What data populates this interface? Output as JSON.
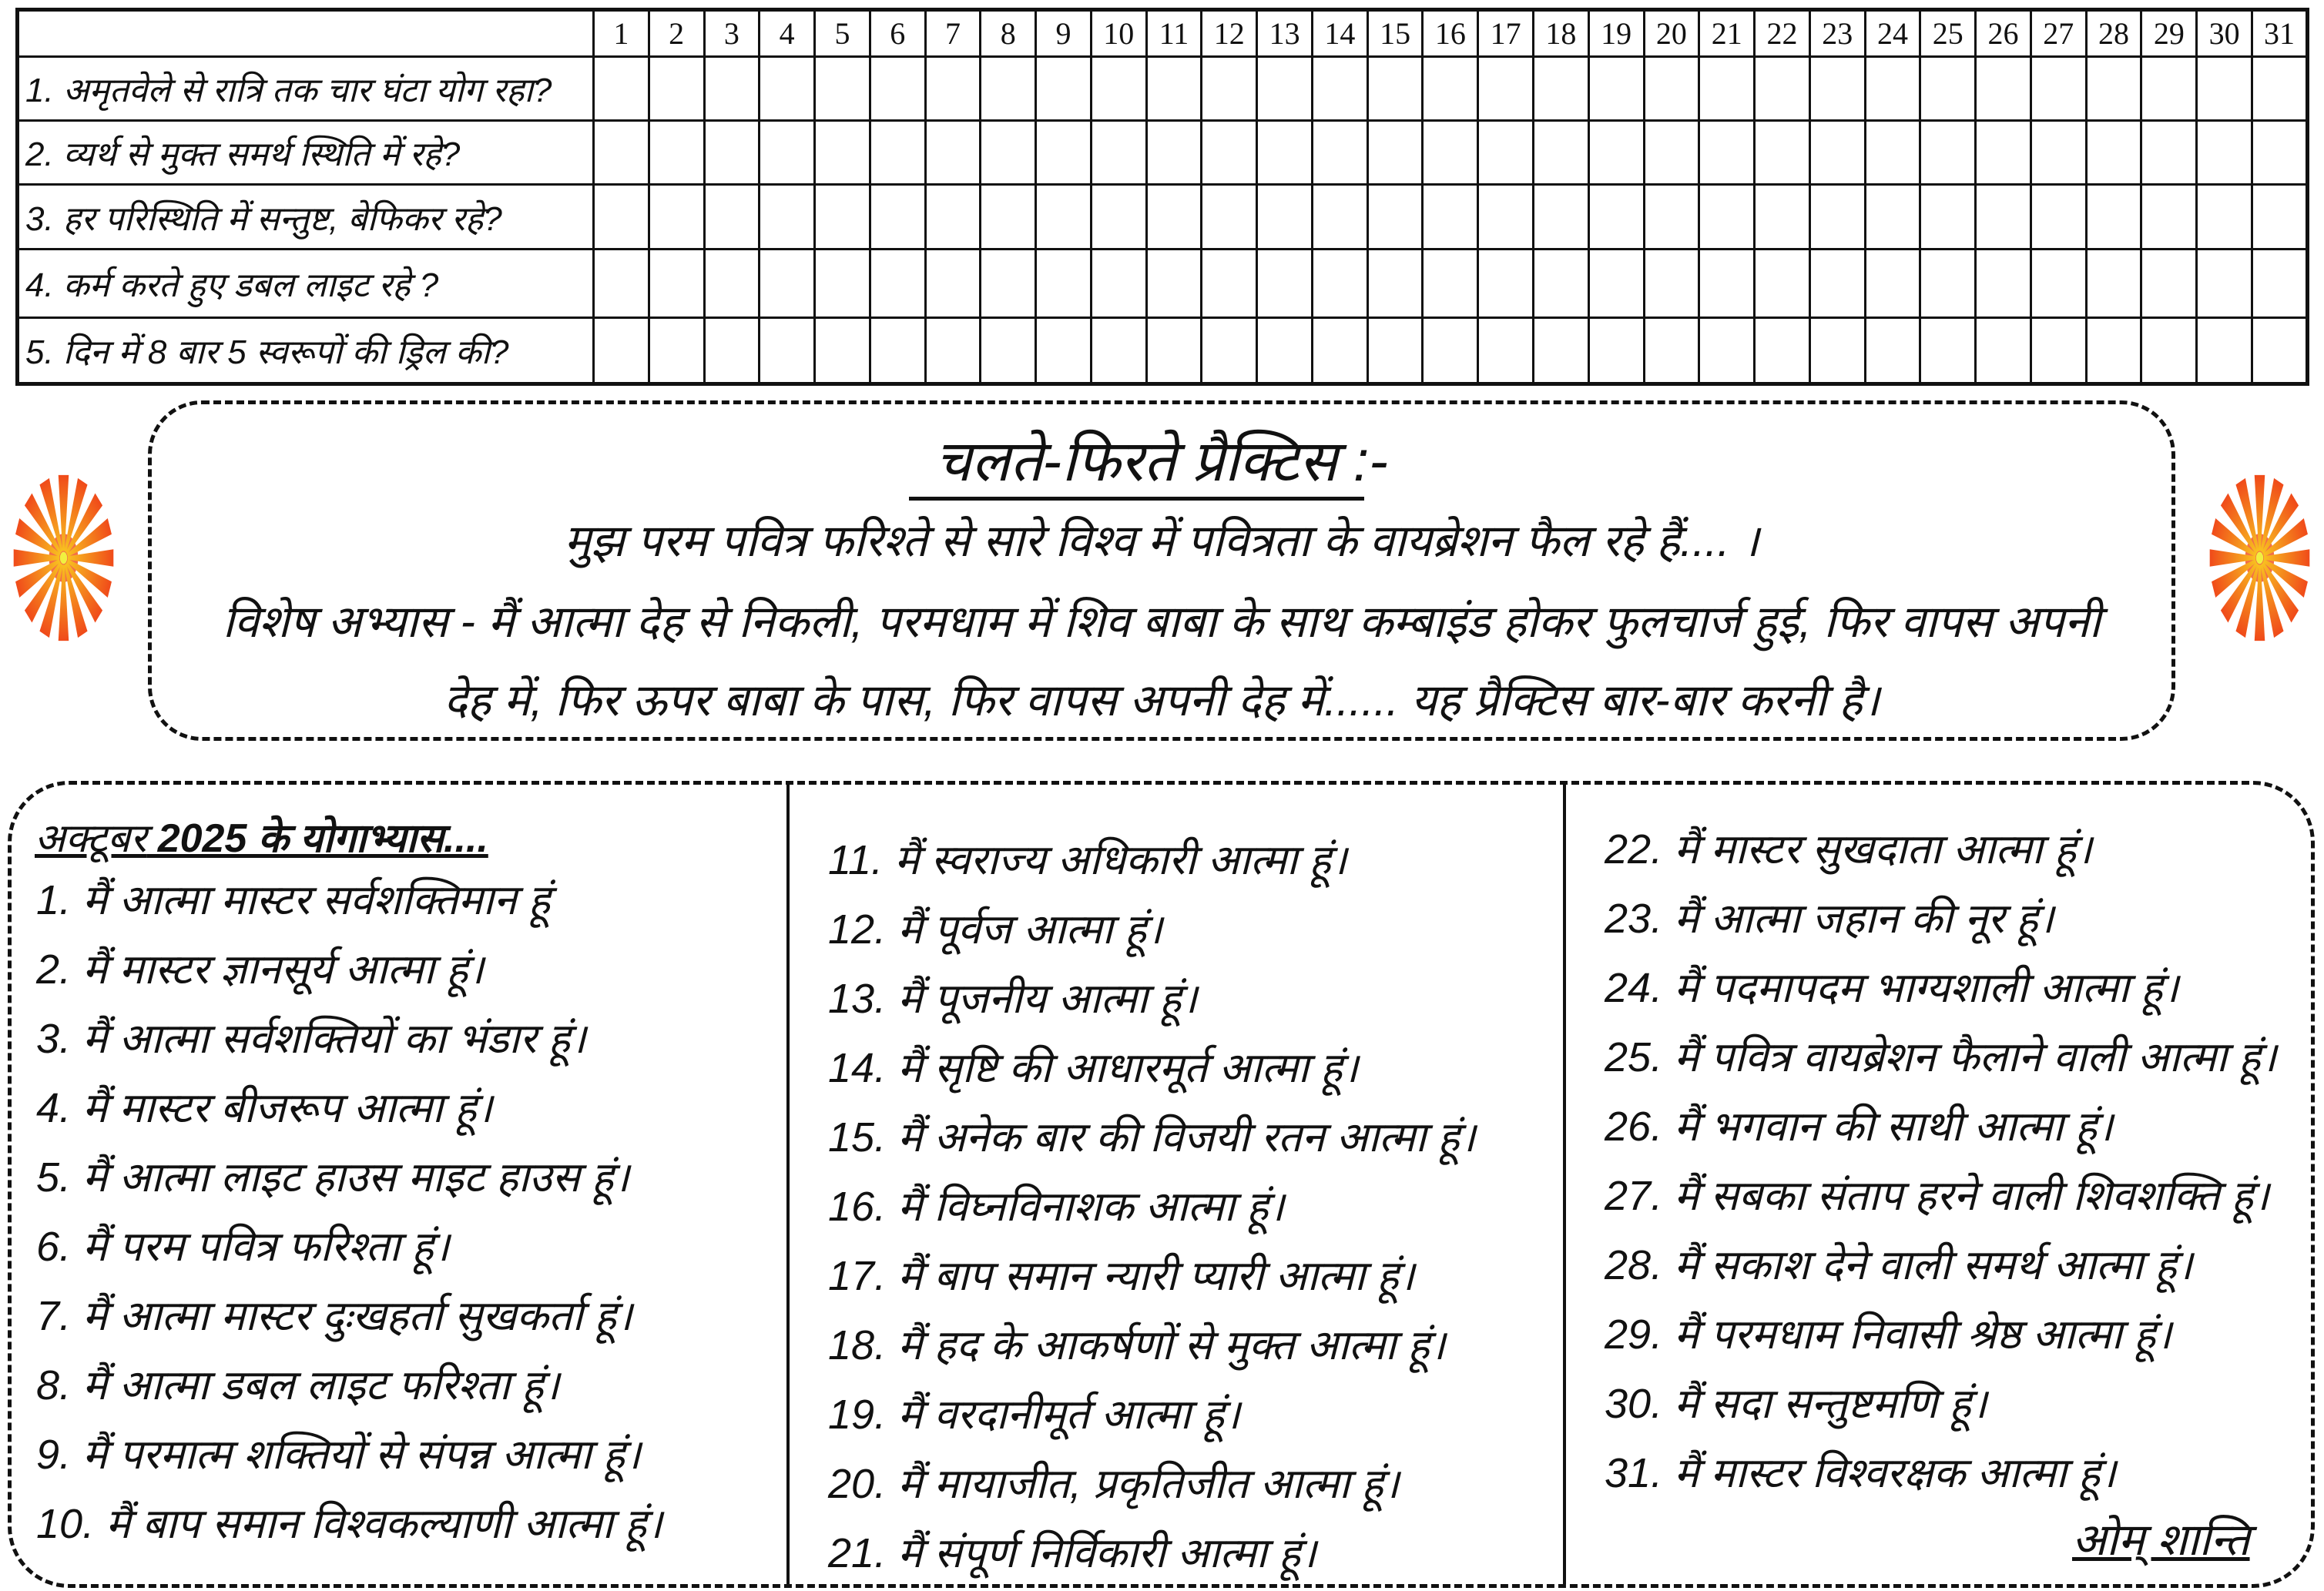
{
  "tracker": {
    "days": [
      "1",
      "2",
      "3",
      "4",
      "5",
      "6",
      "7",
      "8",
      "9",
      "10",
      "11",
      "12",
      "13",
      "14",
      "15",
      "16",
      "17",
      "18",
      "19",
      "20",
      "21",
      "22",
      "23",
      "24",
      "25",
      "26",
      "27",
      "28",
      "29",
      "30",
      "31"
    ],
    "questions": [
      "1. अमृतवेले से रात्रि तक चार घंटा योग रहा?",
      "2. व्यर्थ से मुक्त समर्थ स्थिति में रहे?",
      "3. हर परिस्थिति में सन्तुष्ट, बेफिकर रहे?",
      "4. कर्म करते हुए डबल लाइट रहे ?",
      "5. दिन में 8 बार 5 स्वरूपों की ड्रिल की?"
    ]
  },
  "practice": {
    "title": "चलते-फिरते प्रैक्टिस :-",
    "line1": "मुझ परम पवित्र फरिश्ते से सारे विश्व में पवित्रता के वायब्रेशन फैल रहे हैं.... ।",
    "line2": "विशेष अभ्यास - मैं आत्मा देह से निकली, परमधाम में शिव बाबा के साथ कम्बाइंड होकर फुलचार्ज हुई, फिर वापस अपनी",
    "line3": "देह में, फिर ऊपर बाबा के पास, फिर वापस अपनी देह में...... यह प्रैक्टिस बार-बार करनी है।"
  },
  "logo": {
    "icon": "sun-rays-logo",
    "colors": {
      "ray": "#f04a1a",
      "glow": "#f8c020",
      "center": "#f0f040"
    }
  },
  "affirmations": {
    "header_month": "अक्टूबर",
    "header_rest": " 2025 के योगाभ्यास....",
    "items": [
      "1. मैं आत्मा मास्टर सर्वशक्तिमान हूं",
      "2. मैं मास्टर ज्ञानसूर्य आत्मा हूं।",
      "3. मैं आत्मा सर्वशक्तियों का भंडार हूं।",
      "4. मैं मास्टर बीजरूप आत्मा हूं।",
      "5. मैं आत्मा लाइट हाउस माइट हाउस हूं।",
      "6. मैं परम पवित्र फरिश्ता हूं।",
      "7. मैं आत्मा मास्टर दुःखहर्ता सुखकर्ता हूं।",
      "8. मैं आत्मा डबल लाइट फरिश्ता हूं।",
      "9. मैं परमात्म शक्तियों से संपन्न आत्मा हूं।",
      "10. मैं बाप समान विश्वकल्याणी आत्मा हूं।",
      "11. मैं स्वराज्य अधिकारी आत्मा हूं।",
      "12. मैं पूर्वज आत्मा हूं।",
      "13. मैं पूजनीय आत्मा हूं।",
      "14. मैं सृष्टि की आधारमूर्त आत्मा हूं।",
      "15. मैं अनेक बार की विजयी रतन आत्मा हूं।",
      "16. मैं विघ्नविनाशक आत्मा हूं।",
      "17. मैं बाप समान न्यारी प्यारी आत्मा हूं।",
      "18. मैं हद के आकर्षणों से मुक्त आत्मा हूं।",
      "19. मैं वरदानीमूर्त आत्मा हूं।",
      "20. मैं मायाजीत, प्रकृतिजीत आत्मा हूं।",
      "21. मैं संपूर्ण निर्विकारी आत्मा हूं।",
      "22. मैं मास्टर सुखदाता आत्मा हूं।",
      "23. मैं आत्मा जहान की नूर हूं।",
      "24. मैं पदमापदम भाग्यशाली आत्मा हूं।",
      "25. मैं पवित्र वायब्रेशन फैलाने वाली आत्मा हूं।",
      "26. मैं भगवान की साथी आत्मा हूं।",
      "27. मैं सबका संताप हरने वाली शिवशक्ति हूं।",
      "28. मैं सकाश देने वाली समर्थ आत्मा हूं।",
      "29. मैं परमधाम निवासी श्रेष्ठ आत्मा हूं।",
      "30. मैं सदा सन्तुष्टमणि हूं।",
      "31. मैं मास्टर विश्वरक्षक आत्मा हूं।"
    ],
    "signoff": "ओम् शान्ति"
  }
}
